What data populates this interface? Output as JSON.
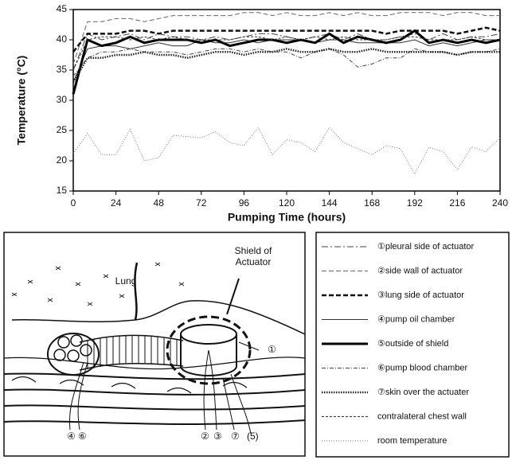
{
  "chart_data": {
    "type": "line",
    "y_label": "Temperature (°C)",
    "x_label": "Pumping Time (hours)",
    "xlim": [
      0,
      240
    ],
    "xticks": [
      0,
      24,
      48,
      72,
      96,
      120,
      144,
      168,
      192,
      216,
      240
    ],
    "ylim": [
      15,
      45
    ],
    "yticks": [
      15,
      20,
      25,
      30,
      35,
      40,
      45
    ],
    "x": [
      0,
      8,
      16,
      24,
      32,
      40,
      48,
      56,
      64,
      72,
      80,
      88,
      96,
      104,
      112,
      120,
      128,
      136,
      144,
      152,
      160,
      168,
      176,
      184,
      192,
      200,
      208,
      216,
      224,
      232,
      240
    ],
    "series": [
      {
        "name": "①pleural side of actuator",
        "color": "#444",
        "dash": "8 3 2 3",
        "width": 1,
        "values": [
          35,
          41,
          40,
          40.5,
          41,
          40,
          41,
          40.5,
          40.5,
          40,
          40.5,
          40,
          40.5,
          41,
          41,
          40.5,
          40,
          40.5,
          41,
          40,
          41,
          40,
          40,
          40.5,
          41,
          40,
          41,
          40,
          40.5,
          40.5,
          41
        ]
      },
      {
        "name": "②side wall of actuator",
        "color": "#666",
        "dash": "6 3",
        "width": 1,
        "values": [
          36,
          43,
          43,
          43.5,
          43.5,
          43,
          43.5,
          44,
          44,
          44,
          44,
          44,
          44.5,
          44.5,
          44,
          44.5,
          44,
          44,
          44.5,
          44,
          44.5,
          44,
          44,
          44.5,
          44.5,
          44.5,
          44,
          44.5,
          44.5,
          44,
          44
        ]
      },
      {
        "name": "③lung side of actuator",
        "color": "#111",
        "dash": "6 3",
        "width": 2.5,
        "values": [
          38,
          41,
          41,
          41,
          41.5,
          41.5,
          41,
          41.5,
          41.5,
          41.5,
          41.5,
          41.5,
          41.5,
          41.5,
          41.5,
          41.5,
          41.5,
          41.5,
          41.5,
          41.5,
          41.5,
          41.5,
          41,
          41.5,
          41.5,
          41.5,
          41.5,
          41,
          41.5,
          42,
          41.5
        ]
      },
      {
        "name": "④pump oil chamber",
        "color": "#333",
        "dash": "none",
        "width": 1,
        "values": [
          33,
          38.5,
          39,
          39,
          38.5,
          39,
          39.5,
          39,
          39,
          40,
          39.5,
          39.5,
          40,
          39.5,
          40,
          40,
          40,
          39.5,
          40,
          40,
          39.5,
          39.5,
          39.5,
          39.5,
          40,
          39,
          39.5,
          39,
          39.5,
          40,
          40
        ]
      },
      {
        "name": "⑤outside of shield",
        "color": "#000",
        "dash": "none",
        "width": 3,
        "values": [
          31,
          40,
          39,
          39.5,
          40.5,
          39.5,
          40,
          40,
          40,
          39.5,
          40,
          39,
          39.5,
          40,
          40,
          39.5,
          40,
          39.5,
          41,
          39.5,
          40.5,
          40,
          39.5,
          40,
          41.5,
          39.5,
          40,
          39.5,
          40,
          39.5,
          40
        ]
      },
      {
        "name": "⑥pump blood chamber",
        "color": "#444",
        "dash": "5 2 1 2",
        "width": 1,
        "values": [
          34,
          37,
          38,
          38,
          38.5,
          38,
          38,
          38,
          37.5,
          38,
          38.5,
          38.5,
          38,
          38.5,
          38,
          38,
          37,
          38,
          38.5,
          37.5,
          35.5,
          36,
          37,
          37,
          38.5,
          38,
          38,
          37.5,
          38,
          38,
          38.5
        ]
      },
      {
        "name": "⑦skin over the actuater",
        "color": "#222",
        "dash": "1.5 1.5",
        "width": 2.5,
        "values": [
          33,
          37,
          37,
          37.5,
          37.5,
          38,
          37.5,
          37.5,
          37,
          37.5,
          38,
          38,
          37.5,
          38,
          38,
          38.5,
          38,
          38,
          38.5,
          38,
          38,
          38.5,
          38,
          38,
          38,
          38,
          38,
          37.5,
          38,
          38,
          38
        ]
      },
      {
        "name": "contralateral chest wall",
        "color": "#333",
        "dash": "3 2",
        "width": 1,
        "values": [
          35,
          40,
          40.5,
          40.5,
          40,
          40.5,
          40,
          40.5,
          40,
          40,
          40,
          40,
          40.5,
          40.5,
          40,
          40.5,
          40,
          40.5,
          40,
          40.5,
          40,
          40,
          40,
          40.5,
          40.5,
          40,
          40,
          40,
          40.5,
          40,
          40
        ]
      },
      {
        "name": "room temperature",
        "color": "#777",
        "dash": "1 2",
        "width": 1,
        "values": [
          21.2,
          24.5,
          21,
          21,
          25.2,
          20,
          20.5,
          24.2,
          24,
          23.8,
          24.8,
          23,
          22.5,
          25.5,
          21,
          23.5,
          23,
          21.5,
          25.5,
          23,
          22,
          21,
          22.5,
          22,
          17.8,
          22.2,
          21.5,
          18.5,
          22.3,
          21.5,
          23.8
        ]
      }
    ]
  },
  "diagram": {
    "lung": "Lung",
    "shield": [
      "Shield of",
      "Actuator"
    ],
    "markers": [
      "①",
      "②",
      "③",
      "④",
      "⑥",
      "⑦",
      "(5)"
    ]
  }
}
